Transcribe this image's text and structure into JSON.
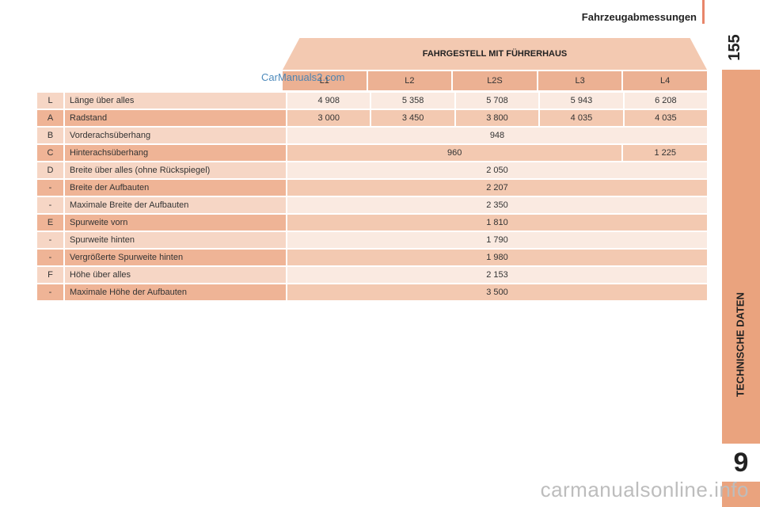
{
  "header": {
    "title": "Fahrzeugabmessungen",
    "page_number": "155"
  },
  "side": {
    "section_label": "TECHNISCHE DATEN",
    "chapter": "9"
  },
  "table": {
    "title": "FAHRGESTELL MIT FÜHRERHAUS",
    "columns": [
      "L1",
      "L2",
      "L2S",
      "L3",
      "L4"
    ],
    "rows": [
      {
        "code": "L",
        "label": "Länge über alles",
        "values": [
          "4 908",
          "5 358",
          "5 708",
          "5 943",
          "6 208"
        ]
      },
      {
        "code": "A",
        "label": "Radstand",
        "values": [
          "3 000",
          "3 450",
          "3 800",
          "4 035",
          "4 035"
        ]
      },
      {
        "code": "B",
        "label": "Vorderachsüberhang",
        "values": [
          "948"
        ]
      },
      {
        "code": "C",
        "label": "Hinterachsüberhang",
        "values": [
          "960",
          "1 225"
        ]
      },
      {
        "code": "D",
        "label": "Breite über alles (ohne Rückspiegel)",
        "values": [
          "2 050"
        ]
      },
      {
        "code": "-",
        "label": "Breite der Aufbauten",
        "values": [
          "2 207"
        ]
      },
      {
        "code": "-",
        "label": "Maximale Breite der Aufbauten",
        "values": [
          "2 350"
        ]
      },
      {
        "code": "E",
        "label": "Spurweite vorn",
        "values": [
          "1 810"
        ]
      },
      {
        "code": "-",
        "label": "Spurweite hinten",
        "values": [
          "1 790"
        ]
      },
      {
        "code": "-",
        "label": "Vergrößerte Spurweite hinten",
        "values": [
          "1 980"
        ]
      },
      {
        "code": "F",
        "label": "Höhe über alles",
        "values": [
          "2 153"
        ]
      },
      {
        "code": "-",
        "label": "Maximale Höhe der Aufbauten",
        "values": [
          "3 500"
        ]
      }
    ]
  },
  "watermarks": {
    "top": "CarManuals2.com",
    "bottom": "carmanualsonline.info"
  },
  "colors": {
    "accent": "#eaa37e",
    "row_dark": "#efb496",
    "row_light": "#f6d6c5"
  }
}
